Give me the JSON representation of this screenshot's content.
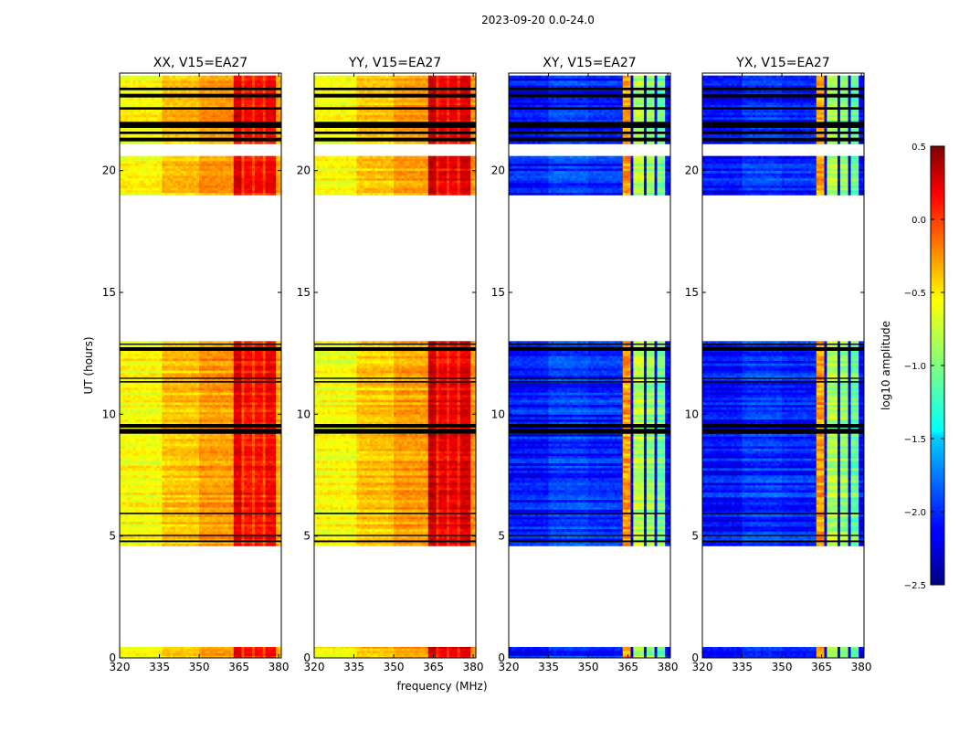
{
  "figure": {
    "suptitle": "2023-09-20 0.0-24.0",
    "ylabel": "UT (hours)",
    "xlabel": "frequency (MHz)"
  },
  "chart_data": {
    "type": "heatmap",
    "x_range": [
      320,
      381
    ],
    "y_range": [
      0,
      24
    ],
    "x_ticks": [
      320,
      335,
      350,
      365,
      380
    ],
    "y_ticks": [
      0,
      5,
      10,
      15,
      20
    ],
    "panels": [
      {
        "title": "XX, V15=EA27",
        "kind": "parallel"
      },
      {
        "title": "YY, V15=EA27",
        "kind": "parallel"
      },
      {
        "title": "XY, V15=EA27",
        "kind": "cross"
      },
      {
        "title": "YX, V15=EA27",
        "kind": "cross"
      }
    ],
    "data_hour_ranges": [
      [
        0,
        0.45
      ],
      [
        4.6,
        13.0
      ],
      [
        19.0,
        20.6
      ],
      [
        21.1,
        23.9
      ]
    ],
    "flagged_hour_bands": [
      [
        4.75,
        4.82
      ],
      [
        5.0,
        5.05
      ],
      [
        5.9,
        5.96
      ],
      [
        9.2,
        9.4
      ],
      [
        9.45,
        9.6
      ],
      [
        11.3,
        11.36
      ],
      [
        11.45,
        11.5
      ],
      [
        12.6,
        12.75
      ],
      [
        12.85,
        12.9
      ],
      [
        21.2,
        21.35
      ],
      [
        21.5,
        21.6
      ],
      [
        21.75,
        22.0
      ],
      [
        22.5,
        22.6
      ],
      [
        23.0,
        23.15
      ],
      [
        23.3,
        23.4
      ]
    ],
    "colorbar": {
      "label": "log10 amplitude",
      "range": [
        -2.5,
        0.5
      ],
      "ticks": [
        0.5,
        0.0,
        -0.5,
        -1.0,
        -1.5,
        -2.0,
        -2.5
      ],
      "tick_labels": [
        "0.5",
        "0.0",
        "−0.5",
        "−1.0",
        "−1.5",
        "−2.0",
        "−2.5"
      ],
      "colormap": "jet"
    }
  }
}
